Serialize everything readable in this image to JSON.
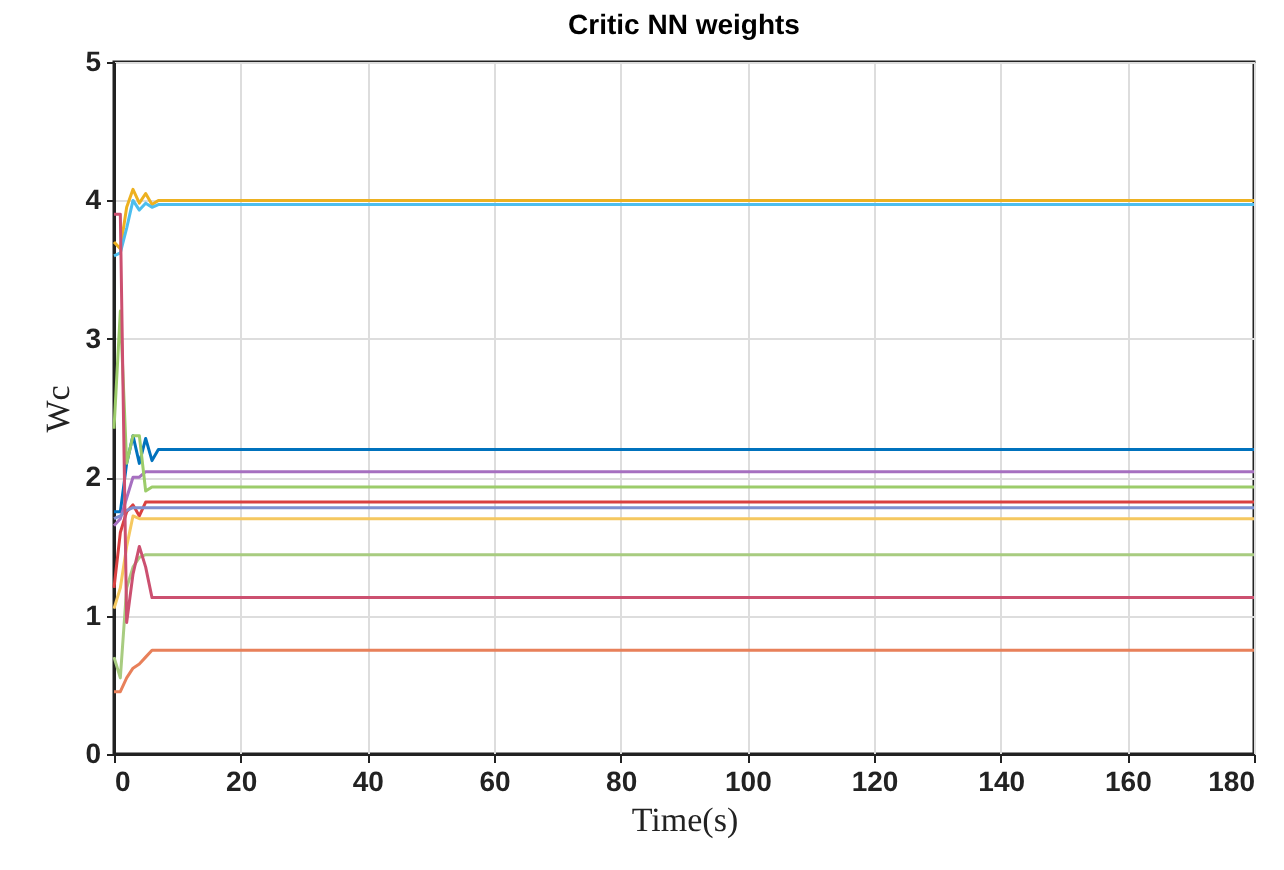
{
  "chart_data": {
    "type": "line",
    "title": "Critic NN weights",
    "xlabel": "Time(s)",
    "ylabel": "Wc",
    "xlim": [
      0,
      180
    ],
    "ylim": [
      0,
      5
    ],
    "xticks": [
      0,
      20,
      40,
      60,
      80,
      100,
      120,
      140,
      160,
      180
    ],
    "yticks": [
      0,
      1,
      2,
      3,
      4,
      5
    ],
    "grid": true,
    "legend": false,
    "x": [
      0,
      1,
      2,
      3,
      4,
      5,
      6,
      7,
      180
    ],
    "series": [
      {
        "color": "#edb120",
        "values": [
          3.7,
          3.65,
          3.95,
          4.08,
          3.98,
          4.05,
          3.97,
          4.0,
          4.0
        ]
      },
      {
        "color": "#4dbeee",
        "values": [
          3.6,
          3.62,
          3.8,
          4.0,
          3.93,
          3.98,
          3.95,
          3.97,
          3.97
        ]
      },
      {
        "color": "#0072bd",
        "values": [
          1.75,
          1.75,
          2.1,
          2.3,
          2.1,
          2.28,
          2.12,
          2.2,
          2.2
        ]
      },
      {
        "color": "#a66fc0",
        "values": [
          1.65,
          1.7,
          1.85,
          2.0,
          2.0,
          2.04,
          2.04,
          2.04,
          2.04
        ]
      },
      {
        "color": "#9ccc6a",
        "values": [
          2.35,
          3.2,
          2.1,
          2.3,
          2.3,
          1.9,
          1.93,
          1.93,
          1.93
        ]
      },
      {
        "color": "#d94040",
        "values": [
          1.2,
          1.6,
          1.75,
          1.8,
          1.72,
          1.82,
          1.82,
          1.82,
          1.82
        ]
      },
      {
        "color": "#7e8fd0",
        "values": [
          1.7,
          1.72,
          1.76,
          1.78,
          1.78,
          1.78,
          1.78,
          1.78,
          1.78
        ]
      },
      {
        "color": "#f5c860",
        "values": [
          1.05,
          1.2,
          1.5,
          1.72,
          1.7,
          1.7,
          1.7,
          1.7,
          1.7
        ]
      },
      {
        "color": "#a8cc80",
        "values": [
          0.7,
          0.55,
          1.2,
          1.35,
          1.42,
          1.44,
          1.44,
          1.44,
          1.44
        ]
      },
      {
        "color": "#cc5070",
        "values": [
          3.9,
          3.9,
          0.95,
          1.3,
          1.5,
          1.35,
          1.13,
          1.13,
          1.13
        ]
      },
      {
        "color": "#e8805a",
        "values": [
          0.45,
          0.45,
          0.55,
          0.62,
          0.65,
          0.7,
          0.75,
          0.75,
          0.75
        ]
      }
    ]
  }
}
